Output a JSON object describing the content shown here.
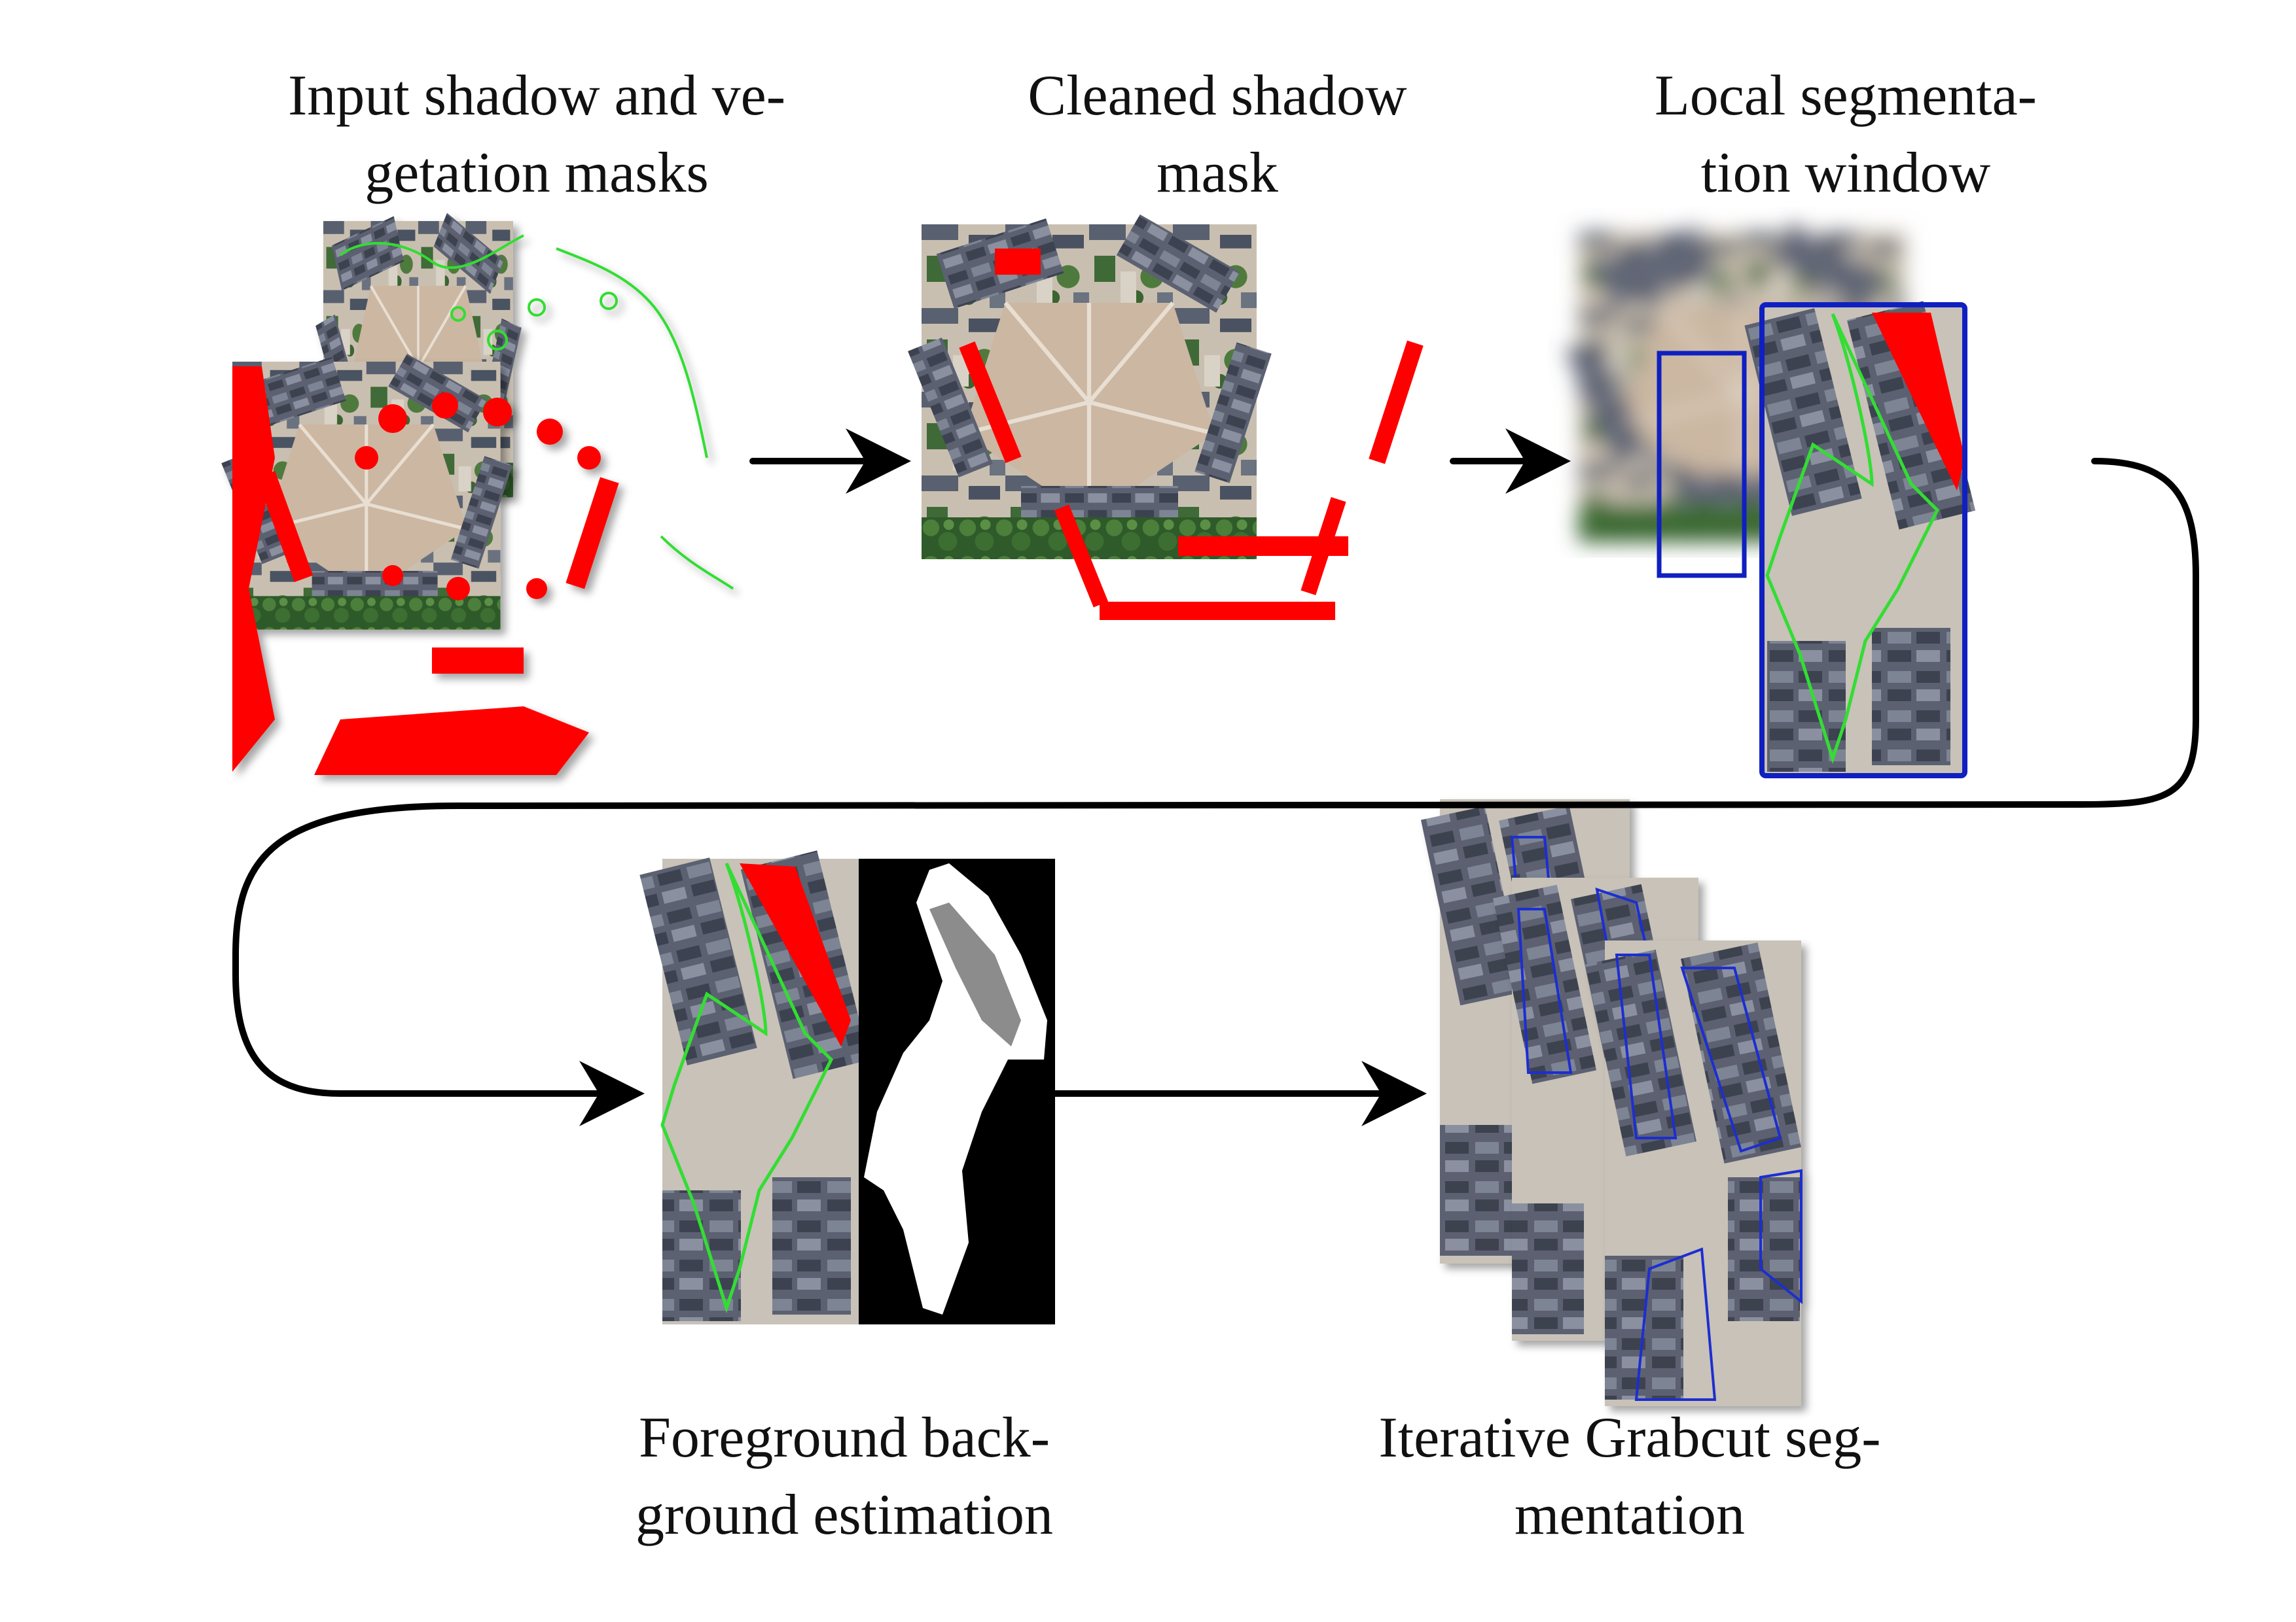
{
  "labels": {
    "input_masks": [
      "Input shadow and ve-",
      "getation masks"
    ],
    "cleaned_mask": [
      "Cleaned shadow",
      "mask"
    ],
    "local_window": [
      "Local segmenta-",
      "tion window"
    ],
    "fg_bg_estimation": [
      "Foreground back-",
      "ground estimation"
    ],
    "grabcut": [
      "Iterative Grabcut seg-",
      "mentation"
    ]
  },
  "colors": {
    "shadow_mask": "#ff0000",
    "vegetation_outline": "#33dd33",
    "window_outline": "#1020c0",
    "segmentation_outline": "#1f2fd0",
    "arrow": "#000000"
  }
}
